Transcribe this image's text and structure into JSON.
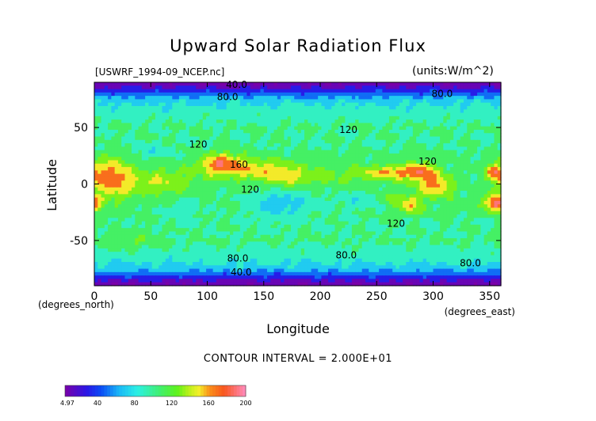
{
  "chart_data": {
    "type": "heatmap",
    "title": "Upward Solar Radiation Flux",
    "source_label": "[USWRF_1994-09_NCEP.nc]",
    "units_label": "(units:W/m^2)",
    "xlabel": "Longitude",
    "ylabel": "Latitude",
    "x_unit_label": "(degrees_east)",
    "y_unit_label": "(degrees_north)",
    "xlim": [
      0,
      360
    ],
    "ylim": [
      -90,
      90
    ],
    "x_ticks": [
      0,
      50,
      100,
      150,
      200,
      250,
      300,
      350
    ],
    "y_ticks": [
      -50,
      0,
      50
    ],
    "contour_interval_label": "CONTOUR INTERVAL = 2.000E+01",
    "contour_labels": [
      {
        "text": "40.0",
        "lon": 126,
        "lat": 88
      },
      {
        "text": "80.0",
        "lon": 118,
        "lat": 77
      },
      {
        "text": "80.0",
        "lon": 308,
        "lat": 80
      },
      {
        "text": "120",
        "lon": 225,
        "lat": 48
      },
      {
        "text": "120",
        "lon": 92,
        "lat": 35
      },
      {
        "text": "160",
        "lon": 128,
        "lat": 17
      },
      {
        "text": "120",
        "lon": 295,
        "lat": 20
      },
      {
        "text": "120",
        "lon": 138,
        "lat": -5
      },
      {
        "text": "120",
        "lon": 267,
        "lat": -35
      },
      {
        "text": "80.0",
        "lon": 127,
        "lat": -66
      },
      {
        "text": "80.0",
        "lon": 223,
        "lat": -63
      },
      {
        "text": "80.0",
        "lon": 333,
        "lat": -70
      },
      {
        "text": "40.0",
        "lon": 130,
        "lat": -78
      }
    ],
    "colorbar": {
      "min": 4.97,
      "max": 200,
      "tick_labels": [
        "4.97",
        "40",
        "80",
        "120",
        "160",
        "200"
      ],
      "tick_values": [
        4.97,
        40,
        80,
        120,
        160,
        200
      ]
    },
    "features": [
      {
        "lon": 15,
        "lat": 5,
        "rx": 18,
        "ry": 17,
        "amp": 70
      },
      {
        "lon": 58,
        "lat": 2,
        "rx": 28,
        "ry": 12,
        "amp": 35
      },
      {
        "lon": 112,
        "lat": 17,
        "rx": 20,
        "ry": 10,
        "amp": 70
      },
      {
        "lon": 150,
        "lat": 12,
        "rx": 28,
        "ry": 10,
        "amp": 45
      },
      {
        "lon": 175,
        "lat": 5,
        "rx": 20,
        "ry": 8,
        "amp": 25
      },
      {
        "lon": 215,
        "lat": 8,
        "rx": 40,
        "ry": 10,
        "amp": 20
      },
      {
        "lon": 265,
        "lat": 10,
        "rx": 25,
        "ry": 6,
        "amp": 55
      },
      {
        "lon": 290,
        "lat": 10,
        "rx": 14,
        "ry": 10,
        "amp": 50
      },
      {
        "lon": 303,
        "lat": -2,
        "rx": 14,
        "ry": 10,
        "amp": 60
      },
      {
        "lon": 280,
        "lat": -18,
        "rx": 10,
        "ry": 8,
        "amp": 55
      },
      {
        "lon": 262,
        "lat": -13,
        "rx": 10,
        "ry": 6,
        "amp": 25
      },
      {
        "lon": 355,
        "lat": -17,
        "rx": 10,
        "ry": 7,
        "amp": 85
      },
      {
        "lon": 355,
        "lat": 10,
        "rx": 8,
        "ry": 7,
        "amp": 60
      },
      {
        "lon": 50,
        "lat": 28,
        "rx": 18,
        "ry": 5,
        "amp": -20
      },
      {
        "lon": 165,
        "lat": -18,
        "rx": 28,
        "ry": 12,
        "amp": -35
      },
      {
        "lon": 80,
        "lat": -22,
        "rx": 15,
        "ry": 8,
        "amp": -20
      },
      {
        "lon": 235,
        "lat": -15,
        "rx": 20,
        "ry": 8,
        "amp": -20
      },
      {
        "lon": 28,
        "lat": -50,
        "rx": 25,
        "ry": 8,
        "amp": 20
      }
    ]
  }
}
